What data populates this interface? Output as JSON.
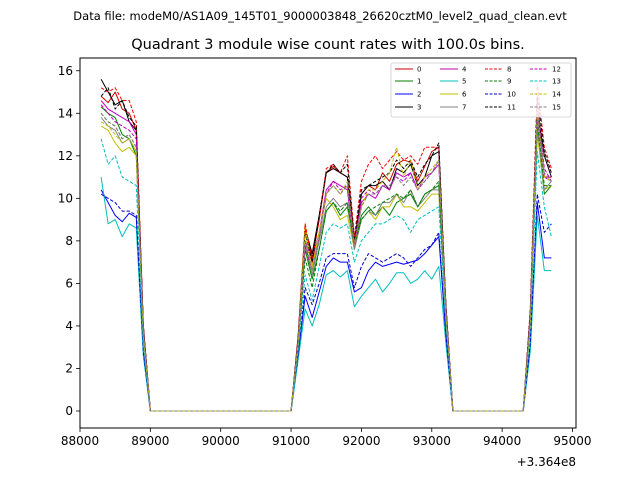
{
  "suptitle": "Data file: modeM0/AS1A09_145T01_9000003848_26620cztM0_level2_quad_clean.evt",
  "chart_data": {
    "type": "line",
    "title": "Quadrant 3 module wise count rates with 100.0s bins.",
    "xlabel": "",
    "ylabel": "",
    "x_offset_label": "+3.364e8",
    "xlim": [
      88000,
      95050
    ],
    "ylim": [
      -0.8,
      16.6
    ],
    "xticks": [
      88000,
      89000,
      90000,
      91000,
      92000,
      93000,
      94000,
      95000
    ],
    "xtick_labels": [
      "88000",
      "89000",
      "90000",
      "91000",
      "92000",
      "93000",
      "94000",
      "95000"
    ],
    "yticks": [
      0,
      2,
      4,
      6,
      8,
      10,
      12,
      14,
      16
    ],
    "ytick_labels": [
      "0",
      "2",
      "4",
      "6",
      "8",
      "10",
      "12",
      "14",
      "16"
    ],
    "legend_position": "top-right",
    "legend_columns": 4,
    "x": [
      88300,
      88400,
      88500,
      88600,
      88700,
      88800,
      88900,
      89000,
      89100,
      89200,
      89300,
      89400,
      89500,
      89600,
      89700,
      89800,
      89900,
      90000,
      90100,
      90200,
      90300,
      90400,
      90500,
      90600,
      90700,
      90800,
      90900,
      91000,
      91100,
      91200,
      91300,
      91400,
      91500,
      91600,
      91700,
      91800,
      91900,
      92000,
      92100,
      92200,
      92300,
      92400,
      92500,
      92600,
      92700,
      92800,
      92900,
      93000,
      93100,
      93200,
      93300,
      93400,
      93500,
      93600,
      93700,
      93800,
      93900,
      94000,
      94100,
      94200,
      94300,
      94400,
      94500,
      94600,
      94700
    ],
    "series": [
      {
        "name": "0",
        "color": "#cc0000",
        "dash": "solid",
        "values": [
          14.8,
          14.5,
          15.0,
          14.2,
          14.0,
          13.2,
          4.0,
          0,
          0,
          0,
          0,
          0,
          0,
          0,
          0,
          0,
          0,
          0,
          0,
          0,
          0,
          0,
          0,
          0,
          0,
          0,
          0,
          0,
          3.5,
          8.6,
          7.2,
          9.0,
          11.2,
          11.5,
          11.2,
          11.0,
          8.0,
          10.2,
          10.6,
          10.4,
          11.2,
          10.8,
          11.6,
          11.8,
          11.7,
          10.8,
          11.5,
          12.2,
          12.4,
          5.0,
          0,
          0,
          0,
          0,
          0,
          0,
          0,
          0,
          0,
          0,
          0,
          4.5,
          14.6,
          11.0,
          11.0
        ]
      },
      {
        "name": "1",
        "color": "#007f00",
        "dash": "solid",
        "values": [
          14.3,
          14.0,
          13.8,
          13.0,
          12.8,
          12.0,
          3.6,
          0,
          0,
          0,
          0,
          0,
          0,
          0,
          0,
          0,
          0,
          0,
          0,
          0,
          0,
          0,
          0,
          0,
          0,
          0,
          0,
          0,
          3.2,
          7.6,
          6.2,
          7.6,
          9.4,
          9.8,
          9.2,
          9.6,
          7.8,
          9.2,
          9.6,
          9.2,
          9.6,
          9.2,
          9.8,
          10.0,
          10.2,
          9.6,
          10.2,
          10.4,
          10.6,
          4.5,
          0,
          0,
          0,
          0,
          0,
          0,
          0,
          0,
          0,
          0,
          0,
          4.2,
          13.2,
          10.2,
          10.6
        ]
      },
      {
        "name": "2",
        "color": "#0000ff",
        "dash": "solid",
        "values": [
          10.4,
          9.8,
          9.2,
          8.9,
          9.3,
          9.1,
          2.8,
          0,
          0,
          0,
          0,
          0,
          0,
          0,
          0,
          0,
          0,
          0,
          0,
          0,
          0,
          0,
          0,
          0,
          0,
          0,
          0,
          0,
          2.6,
          5.4,
          4.4,
          5.6,
          6.8,
          7.2,
          7.0,
          7.0,
          5.6,
          5.8,
          6.6,
          7.0,
          6.8,
          6.9,
          7.0,
          6.9,
          7.0,
          7.1,
          7.4,
          7.8,
          8.2,
          3.6,
          0,
          0,
          0,
          0,
          0,
          0,
          0,
          0,
          0,
          0,
          0,
          3.0,
          9.8,
          7.2,
          7.2
        ]
      },
      {
        "name": "3",
        "color": "#000000",
        "dash": "solid",
        "values": [
          15.6,
          15.0,
          14.4,
          14.6,
          13.6,
          13.2,
          4.0,
          0,
          0,
          0,
          0,
          0,
          0,
          0,
          0,
          0,
          0,
          0,
          0,
          0,
          0,
          0,
          0,
          0,
          0,
          0,
          0,
          0,
          3.4,
          8.6,
          7.4,
          9.2,
          11.2,
          11.4,
          11.2,
          11.0,
          7.8,
          10.2,
          10.6,
          10.6,
          10.8,
          10.4,
          11.4,
          11.2,
          11.6,
          10.6,
          11.0,
          12.0,
          12.2,
          5.0,
          0,
          0,
          0,
          0,
          0,
          0,
          0,
          0,
          0,
          0,
          0,
          4.6,
          14.2,
          12.0,
          11.0
        ]
      },
      {
        "name": "4",
        "color": "#bf00bf",
        "dash": "solid",
        "values": [
          14.6,
          14.2,
          14.0,
          13.8,
          13.6,
          13.0,
          3.8,
          0,
          0,
          0,
          0,
          0,
          0,
          0,
          0,
          0,
          0,
          0,
          0,
          0,
          0,
          0,
          0,
          0,
          0,
          0,
          0,
          0,
          3.2,
          8.0,
          7.0,
          8.4,
          10.4,
          10.8,
          10.6,
          10.4,
          7.6,
          9.8,
          10.2,
          10.0,
          10.6,
          10.4,
          11.2,
          11.0,
          11.2,
          10.4,
          11.0,
          11.2,
          11.6,
          4.8,
          0,
          0,
          0,
          0,
          0,
          0,
          0,
          0,
          0,
          0,
          0,
          4.4,
          14.0,
          11.0,
          10.8
        ]
      },
      {
        "name": "5",
        "color": "#00bfbf",
        "dash": "solid",
        "values": [
          11.0,
          8.8,
          9.0,
          8.2,
          8.8,
          8.6,
          2.6,
          0,
          0,
          0,
          0,
          0,
          0,
          0,
          0,
          0,
          0,
          0,
          0,
          0,
          0,
          0,
          0,
          0,
          0,
          0,
          0,
          0,
          2.4,
          4.8,
          4.0,
          5.0,
          6.4,
          6.6,
          6.3,
          6.6,
          4.9,
          5.4,
          5.8,
          6.2,
          5.6,
          6.0,
          6.5,
          6.5,
          6.0,
          6.2,
          6.6,
          6.2,
          6.8,
          3.2,
          0,
          0,
          0,
          0,
          0,
          0,
          0,
          0,
          0,
          0,
          0,
          2.8,
          9.2,
          6.6,
          6.6
        ]
      },
      {
        "name": "6",
        "color": "#bfbf00",
        "dash": "solid",
        "values": [
          13.4,
          13.2,
          12.6,
          12.2,
          12.4,
          12.0,
          3.6,
          0,
          0,
          0,
          0,
          0,
          0,
          0,
          0,
          0,
          0,
          0,
          0,
          0,
          0,
          0,
          0,
          0,
          0,
          0,
          0,
          0,
          3.2,
          8.8,
          6.8,
          8.4,
          10.0,
          9.6,
          9.0,
          9.2,
          7.6,
          9.0,
          9.4,
          9.0,
          9.6,
          9.6,
          10.2,
          9.6,
          9.6,
          9.4,
          9.8,
          10.2,
          10.2,
          4.4,
          0,
          0,
          0,
          0,
          0,
          0,
          0,
          0,
          0,
          0,
          0,
          4.0,
          13.0,
          10.4,
          10.6
        ]
      },
      {
        "name": "7",
        "color": "#808080",
        "dash": "solid",
        "values": [
          13.8,
          13.4,
          13.2,
          12.6,
          12.8,
          12.2,
          3.6,
          0,
          0,
          0,
          0,
          0,
          0,
          0,
          0,
          0,
          0,
          0,
          0,
          0,
          0,
          0,
          0,
          0,
          0,
          0,
          0,
          0,
          3.2,
          7.8,
          6.4,
          8.0,
          9.6,
          10.0,
          9.6,
          9.8,
          7.6,
          9.0,
          9.4,
          9.2,
          9.8,
          9.8,
          10.2,
          9.8,
          10.4,
          9.6,
          10.0,
          10.4,
          10.4,
          4.6,
          0,
          0,
          0,
          0,
          0,
          0,
          0,
          0,
          0,
          0,
          0,
          4.2,
          13.4,
          10.4,
          10.8
        ]
      },
      {
        "name": "8",
        "color": "#ff0000",
        "dash": "dashed",
        "values": [
          15.2,
          15.0,
          15.2,
          14.6,
          14.6,
          13.6,
          4.0,
          0,
          0,
          0,
          0,
          0,
          0,
          0,
          0,
          0,
          0,
          0,
          0,
          0,
          0,
          0,
          0,
          0,
          0,
          0,
          0,
          0,
          3.5,
          8.8,
          7.0,
          9.0,
          11.4,
          11.6,
          11.2,
          12.0,
          8.2,
          10.8,
          11.6,
          12.0,
          11.4,
          11.8,
          12.2,
          11.8,
          12.0,
          11.6,
          12.4,
          12.4,
          12.4,
          5.0,
          0,
          0,
          0,
          0,
          0,
          0,
          0,
          0,
          0,
          0,
          0,
          4.8,
          15.4,
          12.4,
          11.4
        ]
      },
      {
        "name": "9",
        "color": "#008000",
        "dash": "dashed",
        "values": [
          14.0,
          13.6,
          13.4,
          12.8,
          13.0,
          12.4,
          3.8,
          0,
          0,
          0,
          0,
          0,
          0,
          0,
          0,
          0,
          0,
          0,
          0,
          0,
          0,
          0,
          0,
          0,
          0,
          0,
          0,
          0,
          3.0,
          7.2,
          5.8,
          7.6,
          9.4,
          9.8,
          9.4,
          9.8,
          7.8,
          9.0,
          9.4,
          9.6,
          9.8,
          10.0,
          10.2,
          10.0,
          10.4,
          9.6,
          10.2,
          10.4,
          10.8,
          4.6,
          0,
          0,
          0,
          0,
          0,
          0,
          0,
          0,
          0,
          0,
          0,
          4.2,
          13.6,
          10.6,
          10.6
        ]
      },
      {
        "name": "10",
        "color": "#0000cc",
        "dash": "dashed",
        "values": [
          10.2,
          10.0,
          9.8,
          9.4,
          9.4,
          9.2,
          2.8,
          0,
          0,
          0,
          0,
          0,
          0,
          0,
          0,
          0,
          0,
          0,
          0,
          0,
          0,
          0,
          0,
          0,
          0,
          0,
          0,
          0,
          2.6,
          5.8,
          5.0,
          6.0,
          7.2,
          7.4,
          7.4,
          7.4,
          5.8,
          6.8,
          7.4,
          7.2,
          7.0,
          7.2,
          7.4,
          7.2,
          6.8,
          7.2,
          7.6,
          7.8,
          8.4,
          3.6,
          0,
          0,
          0,
          0,
          0,
          0,
          0,
          0,
          0,
          0,
          0,
          3.2,
          10.2,
          8.4,
          8.8
        ]
      },
      {
        "name": "11",
        "color": "#000000",
        "dash": "dashed",
        "values": [
          14.8,
          15.2,
          14.2,
          14.6,
          13.8,
          13.4,
          4.0,
          0,
          0,
          0,
          0,
          0,
          0,
          0,
          0,
          0,
          0,
          0,
          0,
          0,
          0,
          0,
          0,
          0,
          0,
          0,
          0,
          0,
          3.4,
          8.4,
          7.0,
          9.2,
          11.2,
          11.6,
          11.2,
          11.6,
          8.0,
          10.4,
          10.6,
          10.8,
          11.0,
          11.2,
          11.8,
          11.4,
          11.8,
          11.0,
          11.6,
          12.0,
          12.6,
          5.0,
          0,
          0,
          0,
          0,
          0,
          0,
          0,
          0,
          0,
          0,
          0,
          4.6,
          14.8,
          12.2,
          11.2
        ]
      },
      {
        "name": "12",
        "color": "#bf00bf",
        "dash": "dashed",
        "values": [
          14.4,
          14.0,
          13.6,
          13.4,
          13.2,
          12.8,
          3.8,
          0,
          0,
          0,
          0,
          0,
          0,
          0,
          0,
          0,
          0,
          0,
          0,
          0,
          0,
          0,
          0,
          0,
          0,
          0,
          0,
          0,
          3.2,
          7.8,
          6.6,
          8.2,
          10.2,
          10.8,
          10.4,
          10.6,
          7.8,
          10.0,
          10.4,
          10.2,
          10.6,
          10.6,
          11.0,
          10.8,
          11.2,
          10.4,
          10.8,
          11.2,
          11.8,
          4.8,
          0,
          0,
          0,
          0,
          0,
          0,
          0,
          0,
          0,
          0,
          0,
          4.4,
          14.4,
          11.4,
          10.8
        ]
      },
      {
        "name": "13",
        "color": "#00bfbf",
        "dash": "dashed",
        "values": [
          12.8,
          11.6,
          12.0,
          11.0,
          10.8,
          10.6,
          3.2,
          0,
          0,
          0,
          0,
          0,
          0,
          0,
          0,
          0,
          0,
          0,
          0,
          0,
          0,
          0,
          0,
          0,
          0,
          0,
          0,
          0,
          2.8,
          6.4,
          5.2,
          6.8,
          8.4,
          8.8,
          8.6,
          8.8,
          7.0,
          8.0,
          8.4,
          8.8,
          8.8,
          9.0,
          9.2,
          9.0,
          8.4,
          9.0,
          9.2,
          9.4,
          9.6,
          4.2,
          0,
          0,
          0,
          0,
          0,
          0,
          0,
          0,
          0,
          0,
          0,
          3.8,
          12.2,
          9.6,
          8.2
        ]
      },
      {
        "name": "14",
        "color": "#bfbf00",
        "dash": "dashed",
        "values": [
          13.6,
          13.4,
          13.0,
          12.6,
          12.8,
          12.2,
          3.6,
          0,
          0,
          0,
          0,
          0,
          0,
          0,
          0,
          0,
          0,
          0,
          0,
          0,
          0,
          0,
          0,
          0,
          0,
          0,
          0,
          0,
          3.2,
          8.4,
          6.6,
          8.4,
          10.2,
          10.6,
          10.2,
          10.8,
          7.8,
          9.6,
          10.4,
          10.4,
          10.8,
          11.2,
          12.4,
          11.0,
          11.8,
          10.4,
          11.0,
          11.4,
          11.8,
          4.6,
          0,
          0,
          0,
          0,
          0,
          0,
          0,
          0,
          0,
          0,
          0,
          4.2,
          14.2,
          11.0,
          10.8
        ]
      },
      {
        "name": "15",
        "color": "#808080",
        "dash": "dashed",
        "values": [
          14.0,
          13.6,
          13.4,
          12.8,
          13.0,
          12.4,
          3.8,
          0,
          0,
          0,
          0,
          0,
          0,
          0,
          0,
          0,
          0,
          0,
          0,
          0,
          0,
          0,
          0,
          0,
          0,
          0,
          0,
          0,
          3.2,
          8.0,
          6.6,
          8.2,
          10.2,
          10.6,
          10.2,
          10.6,
          7.8,
          9.6,
          10.2,
          10.2,
          10.6,
          10.6,
          11.0,
          10.6,
          11.0,
          10.4,
          10.8,
          11.2,
          11.8,
          4.8,
          0,
          0,
          0,
          0,
          0,
          0,
          0,
          0,
          0,
          0,
          0,
          4.4,
          14.0,
          11.2,
          10.8
        ]
      }
    ]
  }
}
